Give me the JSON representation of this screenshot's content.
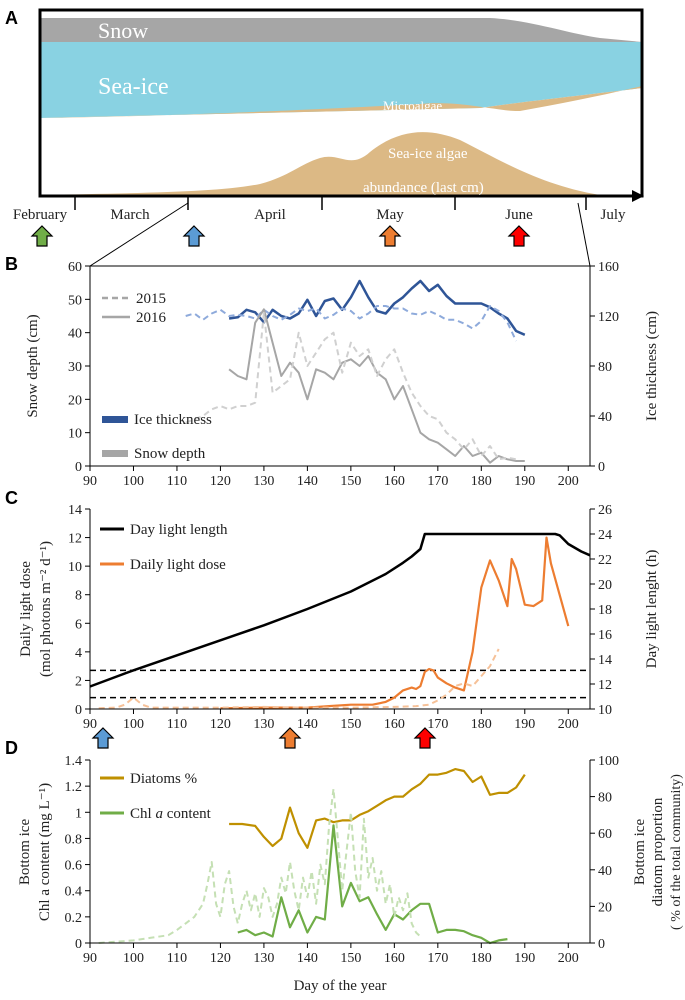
{
  "colors": {
    "snow": "#a6a6a6",
    "seaice": "#89d2e2",
    "algae": "#dcb985",
    "ice_2016": "#2f5597",
    "ice_2015": "#8eaadb",
    "snow_2016": "#a6a6a6",
    "snow_2015": "#d0d0d0",
    "daylight": "#000000",
    "light_2016": "#ed7d31",
    "light_2015": "#f6c198",
    "diatoms": "#bf9000",
    "chl_2016": "#70ad47",
    "chl_2015": "#c5e0b4",
    "arrow_green": "#70ad47",
    "arrow_blue": "#5b9bd5",
    "arrow_orange": "#ed7d31",
    "arrow_red": "#ff0000"
  },
  "panels": {
    "a": "A",
    "b": "B",
    "c": "C",
    "d": "D"
  },
  "schematic": {
    "snow": "Snow",
    "sea_ice": "Sea-ice",
    "microalgae": "Microalgae",
    "algae_line1": "Sea-ice algae",
    "algae_line2": "abundance (last cm)",
    "months": [
      "February",
      "March",
      "April",
      "May",
      "June",
      "July"
    ]
  },
  "chart_data": [
    {
      "id": "B",
      "type": "line",
      "xlabel": "",
      "ylabel_left": "Snow depth (cm)",
      "ylabel_right": "Ice thickness (cm)",
      "xlim": [
        90,
        205
      ],
      "xticks": [
        90,
        100,
        110,
        120,
        130,
        140,
        150,
        160,
        170,
        180,
        190,
        200
      ],
      "ylim_left": [
        0,
        60
      ],
      "yticks_left": [
        0,
        10,
        20,
        30,
        40,
        50,
        60
      ],
      "ylim_right": [
        0,
        160
      ],
      "yticks_right": [
        0,
        40,
        80,
        120,
        160
      ],
      "legend_years": [
        "2015",
        "2016"
      ],
      "legend_vars": [
        "Ice thickness",
        "Snow depth"
      ],
      "series": [
        {
          "name": "Ice thickness 2016",
          "axis": "right",
          "style": "solid",
          "x": [
            122,
            124,
            126,
            128,
            130,
            132,
            134,
            136,
            138,
            140,
            142,
            144,
            146,
            148,
            150,
            152,
            154,
            156,
            158,
            160,
            162,
            164,
            166,
            168,
            170,
            172,
            174,
            176,
            178,
            180,
            182,
            184,
            186,
            188,
            190
          ],
          "y": [
            118,
            119,
            125,
            123,
            115,
            125,
            120,
            118,
            122,
            133,
            120,
            132,
            134,
            125,
            135,
            148,
            135,
            124,
            122,
            130,
            135,
            142,
            148,
            140,
            145,
            136,
            130,
            130,
            130,
            130,
            127,
            122,
            118,
            108,
            105
          ]
        },
        {
          "name": "Ice thickness 2015",
          "axis": "right",
          "style": "dashed",
          "x": [
            112,
            114,
            116,
            118,
            120,
            122,
            124,
            126,
            128,
            130,
            132,
            134,
            136,
            138,
            140,
            142,
            144,
            146,
            148,
            150,
            152,
            154,
            156,
            158,
            160,
            162,
            164,
            166,
            168,
            170,
            172,
            174,
            176,
            178,
            180,
            182,
            184,
            186,
            188
          ],
          "y": [
            120,
            122,
            117,
            122,
            125,
            120,
            121,
            120,
            118,
            125,
            120,
            117,
            121,
            126,
            124,
            126,
            118,
            121,
            126,
            124,
            118,
            122,
            128,
            128,
            126,
            126,
            122,
            121,
            124,
            121,
            117,
            117,
            114,
            110,
            116,
            128,
            124,
            115,
            100
          ]
        },
        {
          "name": "Snow depth 2016",
          "axis": "left",
          "style": "solid",
          "x": [
            122,
            124,
            126,
            128,
            130,
            132,
            134,
            136,
            138,
            140,
            142,
            144,
            146,
            148,
            150,
            152,
            154,
            156,
            158,
            160,
            162,
            164,
            166,
            168,
            170,
            172,
            174,
            176,
            178,
            180,
            182,
            184,
            186,
            188,
            190
          ],
          "y": [
            29,
            27,
            26,
            43,
            47,
            37,
            27,
            31,
            28,
            20,
            29,
            28,
            26,
            31,
            32,
            30,
            33,
            28,
            26,
            20,
            24,
            17,
            10,
            8,
            7,
            5,
            3,
            6,
            3,
            4,
            1,
            3,
            2,
            1.5,
            1.5
          ]
        },
        {
          "name": "Snow depth 2015",
          "axis": "left",
          "style": "dashed",
          "x": [
            112,
            114,
            116,
            118,
            120,
            122,
            124,
            126,
            128,
            130,
            132,
            134,
            136,
            138,
            140,
            142,
            144,
            146,
            148,
            150,
            152,
            154,
            156,
            158,
            160,
            162,
            164,
            166,
            168,
            170,
            172,
            174,
            176,
            178,
            180,
            182,
            184,
            186,
            188
          ],
          "y": [
            13,
            14,
            15,
            17,
            18,
            17,
            18,
            18,
            19,
            46,
            22,
            24,
            26,
            40,
            30,
            34,
            38,
            40,
            28,
            37,
            33,
            35,
            27,
            32,
            35,
            28,
            22,
            18,
            15,
            14,
            10,
            8,
            5,
            8,
            3,
            6,
            2,
            2.5,
            2
          ]
        }
      ]
    },
    {
      "id": "C",
      "type": "line",
      "xlabel": "",
      "ylabel_left_line1": "Daily light dose",
      "ylabel_left_line2": "(mol photons m⁻² d⁻¹)",
      "ylabel_right": "Day light lenght (h)",
      "xlim": [
        90,
        205
      ],
      "xticks": [
        90,
        100,
        110,
        120,
        130,
        140,
        150,
        160,
        170,
        180,
        190,
        200
      ],
      "ylim_left": [
        0,
        14
      ],
      "yticks_left": [
        0,
        2,
        4,
        6,
        8,
        10,
        12,
        14
      ],
      "ylim_right": [
        10,
        26
      ],
      "yticks_right": [
        10,
        12,
        14,
        16,
        18,
        20,
        22,
        24,
        26
      ],
      "thresholds": [
        0.8,
        2.7
      ],
      "legend": [
        "Day light length",
        "Daily light dose"
      ],
      "series": [
        {
          "name": "Day light length",
          "axis": "right",
          "style": "solid",
          "x": [
            90,
            100,
            110,
            120,
            130,
            140,
            150,
            158,
            162,
            164,
            166,
            167,
            170,
            180,
            190,
            197,
            198,
            200,
            203,
            205
          ],
          "y": [
            11.8,
            13.1,
            14.3,
            15.5,
            16.7,
            18.0,
            19.4,
            20.8,
            21.7,
            22.2,
            22.8,
            24,
            24,
            24,
            24,
            24,
            23.9,
            23.2,
            22.6,
            22.3
          ]
        },
        {
          "name": "Daily light dose 2016",
          "axis": "left",
          "style": "solid",
          "x": [
            120,
            130,
            140,
            145,
            150,
            155,
            158,
            160,
            162,
            164,
            165,
            166,
            167,
            168,
            169,
            170,
            172,
            174,
            176,
            178,
            180,
            182,
            184,
            186,
            187,
            188,
            190,
            192,
            194,
            195,
            196,
            198,
            200
          ],
          "y": [
            0.05,
            0.1,
            0.1,
            0.2,
            0.3,
            0.3,
            0.5,
            0.8,
            1.3,
            1.5,
            1.4,
            1.6,
            2.6,
            2.8,
            2.7,
            2.2,
            1.8,
            1.5,
            1.3,
            4.0,
            8.5,
            10.4,
            9.0,
            7.2,
            10.5,
            9.8,
            7.3,
            7.2,
            7.6,
            12.0,
            10.2,
            8.0,
            5.8
          ]
        },
        {
          "name": "Daily light dose 2015",
          "axis": "left",
          "style": "dashed",
          "x": [
            92,
            96,
            98,
            100,
            102,
            104,
            110,
            120,
            130,
            140,
            150,
            160,
            165,
            168,
            170,
            172,
            174,
            176,
            178,
            180,
            182,
            184
          ],
          "y": [
            0.05,
            0.1,
            0.3,
            0.8,
            0.3,
            0.1,
            0.1,
            0.1,
            0.15,
            0.1,
            0.1,
            0.15,
            0.2,
            0.3,
            0.6,
            1.0,
            1.6,
            1.8,
            1.6,
            2.3,
            3.0,
            4.2
          ]
        }
      ]
    },
    {
      "id": "D",
      "type": "line",
      "xlabel": "Day of  the year",
      "ylabel_left_line1": "Bottom ice",
      "ylabel_left_line2": "Chl a content (mg L⁻¹)",
      "ylabel_right_line1": "Bottom ice",
      "ylabel_right_line2": "diatom proportion",
      "ylabel_right_line3": "( % of the total community)",
      "xlim": [
        90,
        205
      ],
      "xticks": [
        90,
        100,
        110,
        120,
        130,
        140,
        150,
        160,
        170,
        180,
        190,
        200
      ],
      "ylim_left": [
        0,
        1.4
      ],
      "yticks_left": [
        "0",
        "0.2",
        "0.4",
        "0.6",
        "0.8",
        "1",
        "1.2",
        "1.4"
      ],
      "ylim_right": [
        0,
        100
      ],
      "yticks_right": [
        0,
        20,
        40,
        60,
        80,
        100
      ],
      "legend_diatoms": "Diatoms %",
      "legend_chl_prefix": "Chl ",
      "legend_chl_italic": "a",
      "legend_chl_suffix": " content",
      "series": [
        {
          "name": "Diatoms %",
          "axis": "right",
          "style": "solid",
          "x": [
            122,
            125,
            128,
            130,
            132,
            134,
            136,
            138,
            140,
            142,
            144,
            146,
            148,
            150,
            152,
            154,
            156,
            158,
            160,
            162,
            164,
            166,
            168,
            170,
            172,
            174,
            176,
            178,
            180,
            182,
            184,
            186,
            188,
            190
          ],
          "y": [
            65,
            65,
            64,
            58,
            53,
            57,
            74,
            60,
            52,
            67,
            68,
            66,
            67,
            67,
            70,
            72,
            75,
            78,
            80,
            80,
            84,
            87,
            92,
            92,
            93,
            95,
            94,
            88,
            91,
            81,
            82,
            82,
            85,
            92
          ]
        },
        {
          "name": "Chl a content 2016",
          "axis": "left",
          "style": "solid",
          "x": [
            124,
            126,
            128,
            130,
            132,
            134,
            136,
            138,
            140,
            142,
            144,
            146,
            148,
            150,
            152,
            154,
            156,
            158,
            160,
            162,
            164,
            166,
            168,
            170,
            172,
            174,
            176,
            178,
            180,
            182,
            184,
            186
          ],
          "y": [
            0.08,
            0.1,
            0.06,
            0.08,
            0.05,
            0.35,
            0.12,
            0.25,
            0.08,
            0.2,
            0.18,
            0.9,
            0.28,
            0.46,
            0.32,
            0.35,
            0.22,
            0.1,
            0.22,
            0.18,
            0.25,
            0.3,
            0.3,
            0.08,
            0.1,
            0.1,
            0.09,
            0.06,
            0.04,
            0.0,
            0.02,
            0.03
          ]
        },
        {
          "name": "Chl a content 2015",
          "axis": "left",
          "style": "dashed",
          "x": [
            92,
            96,
            100,
            104,
            108,
            110,
            112,
            114,
            116,
            117,
            118,
            119,
            120,
            121,
            122,
            123,
            124,
            125,
            126,
            127,
            128,
            129,
            130,
            131,
            132,
            133,
            134,
            135,
            136,
            137,
            138,
            139,
            140,
            141,
            142,
            143,
            144,
            145,
            146,
            147,
            148,
            149,
            150,
            151,
            152,
            153,
            154,
            155,
            156,
            157,
            158,
            159,
            160,
            161,
            162,
            163,
            164,
            165,
            166
          ],
          "y": [
            0,
            0.01,
            0.02,
            0.04,
            0.06,
            0.1,
            0.15,
            0.2,
            0.3,
            0.45,
            0.62,
            0.3,
            0.2,
            0.45,
            0.55,
            0.28,
            0.15,
            0.3,
            0.4,
            0.25,
            0.38,
            0.2,
            0.42,
            0.35,
            0.2,
            0.3,
            0.5,
            0.38,
            0.62,
            0.4,
            0.25,
            0.5,
            0.35,
            0.55,
            0.3,
            0.6,
            0.45,
            0.9,
            1.18,
            0.8,
            0.4,
            0.7,
            1.0,
            0.55,
            0.35,
            0.95,
            0.5,
            0.65,
            0.4,
            0.55,
            0.3,
            0.45,
            0.2,
            0.35,
            0.25,
            0.38,
            0.15,
            0.08,
            0.05
          ]
        }
      ]
    }
  ]
}
